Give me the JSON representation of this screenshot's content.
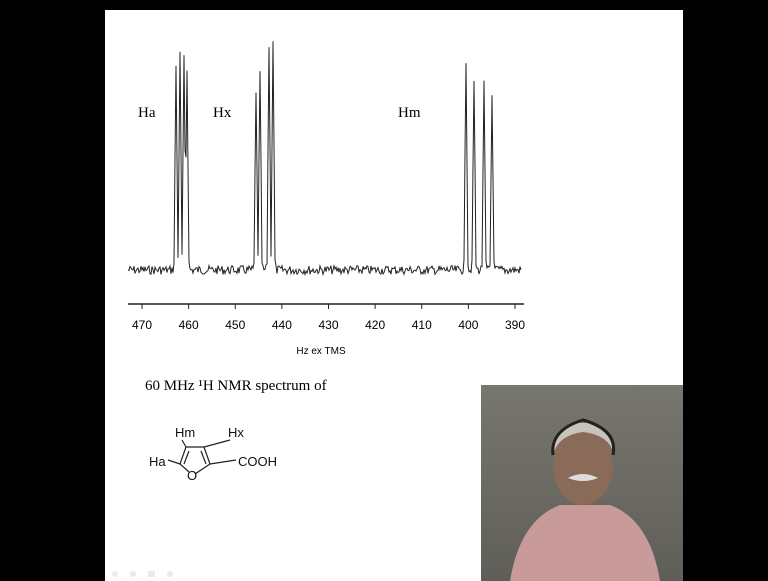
{
  "spectrum": {
    "peak_labels": [
      "Ha",
      "Hx",
      "Hm"
    ],
    "ticks": [
      "470",
      "460",
      "450",
      "440",
      "430",
      "420",
      "410",
      "400",
      "390"
    ],
    "axis_label": "Hz ex TMS"
  },
  "caption": "60 MHz ¹H NMR spectrum of",
  "molecule": {
    "labels": [
      "Hm",
      "Hx",
      "Ha",
      "O",
      "COOH"
    ]
  }
}
